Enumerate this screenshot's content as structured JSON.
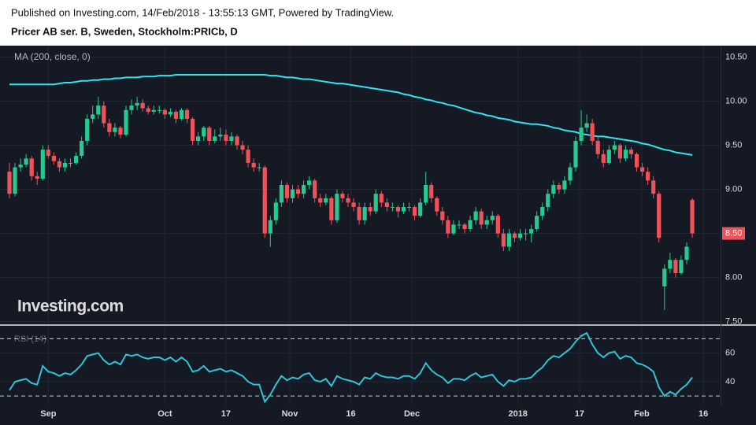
{
  "header": {
    "published": "Published on Investing.com, 14/Feb/2018 - 13:55:13 GMT, Powered by TradingView."
  },
  "chart_data": [
    {
      "type": "candlestick",
      "title": "Pricer AB ser. B, Sweden, Stockholm:PRICb, D",
      "watermark": "Investing.com",
      "up_color": "#26c98f",
      "down_color": "#f0525a",
      "ohlc": [
        [
          9.2,
          9.3,
          8.9,
          8.95
        ],
        [
          8.95,
          9.3,
          8.92,
          9.25
        ],
        [
          9.25,
          9.35,
          9.2,
          9.28
        ],
        [
          9.28,
          9.4,
          9.25,
          9.35
        ],
        [
          9.35,
          9.38,
          9.1,
          9.15
        ],
        [
          9.15,
          9.2,
          9.05,
          9.12
        ],
        [
          9.12,
          9.5,
          9.1,
          9.45
        ],
        [
          9.45,
          9.5,
          9.35,
          9.38
        ],
        [
          9.38,
          9.42,
          9.28,
          9.32
        ],
        [
          9.32,
          9.35,
          9.2,
          9.25
        ],
        [
          9.25,
          9.35,
          9.2,
          9.3
        ],
        [
          9.3,
          9.35,
          9.25,
          9.3
        ],
        [
          9.3,
          9.42,
          9.28,
          9.38
        ],
        [
          9.38,
          9.6,
          9.35,
          9.55
        ],
        [
          9.55,
          9.85,
          9.5,
          9.8
        ],
        [
          9.8,
          9.95,
          9.75,
          9.85
        ],
        [
          9.85,
          10.05,
          9.8,
          9.95
        ],
        [
          9.95,
          10.0,
          9.7,
          9.75
        ],
        [
          9.75,
          9.8,
          9.6,
          9.65
        ],
        [
          9.65,
          9.75,
          9.6,
          9.7
        ],
        [
          9.7,
          9.72,
          9.58,
          9.62
        ],
        [
          9.62,
          9.95,
          9.6,
          9.9
        ],
        [
          9.9,
          10.02,
          9.85,
          9.95
        ],
        [
          9.95,
          10.05,
          9.9,
          9.98
        ],
        [
          9.98,
          10.02,
          9.88,
          9.92
        ],
        [
          9.92,
          9.95,
          9.85,
          9.88
        ],
        [
          9.88,
          9.95,
          9.85,
          9.9
        ],
        [
          9.9,
          9.95,
          9.86,
          9.9
        ],
        [
          9.9,
          9.92,
          9.8,
          9.85
        ],
        [
          9.85,
          9.92,
          9.82,
          9.88
        ],
        [
          9.88,
          9.9,
          9.75,
          9.8
        ],
        [
          9.8,
          9.92,
          9.78,
          9.9
        ],
        [
          9.9,
          9.92,
          9.75,
          9.8
        ],
        [
          9.8,
          9.82,
          9.5,
          9.55
        ],
        [
          9.55,
          9.65,
          9.5,
          9.6
        ],
        [
          9.6,
          9.72,
          9.55,
          9.7
        ],
        [
          9.7,
          9.72,
          9.5,
          9.55
        ],
        [
          9.55,
          9.68,
          9.52,
          9.6
        ],
        [
          9.6,
          9.7,
          9.55,
          9.62
        ],
        [
          9.62,
          9.68,
          9.5,
          9.55
        ],
        [
          9.55,
          9.65,
          9.5,
          9.6
        ],
        [
          9.6,
          9.62,
          9.45,
          9.5
        ],
        [
          9.5,
          9.55,
          9.4,
          9.45
        ],
        [
          9.45,
          9.5,
          9.25,
          9.3
        ],
        [
          9.3,
          9.35,
          9.2,
          9.25
        ],
        [
          9.25,
          9.3,
          9.2,
          9.25
        ],
        [
          9.25,
          9.27,
          8.45,
          8.5
        ],
        [
          8.5,
          8.7,
          8.35,
          8.65
        ],
        [
          8.65,
          8.9,
          8.6,
          8.85
        ],
        [
          8.85,
          9.1,
          8.8,
          9.05
        ],
        [
          9.05,
          9.08,
          8.85,
          8.9
        ],
        [
          8.9,
          9.05,
          8.85,
          9.0
        ],
        [
          9.0,
          9.05,
          8.9,
          8.95
        ],
        [
          8.95,
          9.1,
          8.9,
          9.05
        ],
        [
          9.05,
          9.15,
          9.0,
          9.1
        ],
        [
          9.1,
          9.12,
          8.85,
          8.9
        ],
        [
          8.9,
          8.95,
          8.8,
          8.85
        ],
        [
          8.85,
          8.95,
          8.82,
          8.9
        ],
        [
          8.9,
          8.92,
          8.6,
          8.65
        ],
        [
          8.65,
          9.0,
          8.62,
          8.95
        ],
        [
          8.95,
          8.98,
          8.85,
          8.9
        ],
        [
          8.9,
          8.95,
          8.8,
          8.85
        ],
        [
          8.85,
          8.9,
          8.75,
          8.8
        ],
        [
          8.8,
          8.85,
          8.6,
          8.65
        ],
        [
          8.65,
          8.85,
          8.6,
          8.8
        ],
        [
          8.8,
          8.85,
          8.7,
          8.75
        ],
        [
          8.75,
          9.0,
          8.72,
          8.95
        ],
        [
          8.95,
          8.98,
          8.8,
          8.85
        ],
        [
          8.85,
          8.9,
          8.75,
          8.8
        ],
        [
          8.8,
          8.85,
          8.75,
          8.8
        ],
        [
          8.8,
          8.82,
          8.68,
          8.75
        ],
        [
          8.75,
          8.85,
          8.72,
          8.8
        ],
        [
          8.8,
          8.85,
          8.75,
          8.8
        ],
        [
          8.8,
          8.82,
          8.65,
          8.7
        ],
        [
          8.7,
          8.9,
          8.68,
          8.85
        ],
        [
          8.85,
          9.2,
          8.82,
          9.05
        ],
        [
          9.05,
          9.08,
          8.85,
          8.9
        ],
        [
          8.9,
          8.92,
          8.7,
          8.75
        ],
        [
          8.75,
          8.8,
          8.6,
          8.65
        ],
        [
          8.65,
          8.7,
          8.45,
          8.5
        ],
        [
          8.5,
          8.65,
          8.48,
          8.6
        ],
        [
          8.6,
          8.65,
          8.55,
          8.6
        ],
        [
          8.6,
          8.62,
          8.5,
          8.55
        ],
        [
          8.55,
          8.7,
          8.52,
          8.65
        ],
        [
          8.65,
          8.8,
          8.6,
          8.75
        ],
        [
          8.75,
          8.78,
          8.55,
          8.6
        ],
        [
          8.6,
          8.7,
          8.55,
          8.65
        ],
        [
          8.65,
          8.75,
          8.6,
          8.7
        ],
        [
          8.7,
          8.72,
          8.45,
          8.5
        ],
        [
          8.5,
          8.55,
          8.3,
          8.35
        ],
        [
          8.35,
          8.55,
          8.3,
          8.5
        ],
        [
          8.5,
          8.52,
          8.4,
          8.45
        ],
        [
          8.45,
          8.55,
          8.42,
          8.5
        ],
        [
          8.5,
          8.55,
          8.42,
          8.5
        ],
        [
          8.5,
          8.6,
          8.4,
          8.55
        ],
        [
          8.55,
          8.75,
          8.52,
          8.7
        ],
        [
          8.7,
          8.85,
          8.65,
          8.8
        ],
        [
          8.8,
          9.0,
          8.75,
          8.95
        ],
        [
          8.95,
          9.1,
          8.9,
          9.05
        ],
        [
          9.05,
          9.08,
          8.95,
          9.0
        ],
        [
          9.0,
          9.15,
          8.95,
          9.1
        ],
        [
          9.1,
          9.3,
          9.05,
          9.25
        ],
        [
          9.25,
          9.6,
          9.2,
          9.55
        ],
        [
          9.55,
          9.9,
          9.5,
          9.7
        ],
        [
          9.7,
          9.85,
          9.65,
          9.75
        ],
        [
          9.75,
          9.8,
          9.5,
          9.55
        ],
        [
          9.55,
          9.6,
          9.35,
          9.4
        ],
        [
          9.4,
          9.45,
          9.25,
          9.3
        ],
        [
          9.3,
          9.5,
          9.28,
          9.45
        ],
        [
          9.45,
          9.55,
          9.4,
          9.5
        ],
        [
          9.5,
          9.52,
          9.3,
          9.35
        ],
        [
          9.35,
          9.5,
          9.32,
          9.45
        ],
        [
          9.45,
          9.48,
          9.35,
          9.4
        ],
        [
          9.4,
          9.42,
          9.2,
          9.25
        ],
        [
          9.25,
          9.3,
          9.15,
          9.2
        ],
        [
          9.2,
          9.25,
          9.05,
          9.1
        ],
        [
          9.1,
          9.15,
          8.9,
          8.95
        ],
        [
          8.95,
          8.98,
          8.4,
          8.45
        ],
        [
          7.9,
          8.15,
          7.63,
          8.1
        ],
        [
          8.1,
          8.28,
          8.05,
          8.2
        ],
        [
          8.2,
          8.22,
          8.0,
          8.05
        ],
        [
          8.05,
          8.25,
          8.03,
          8.2
        ],
        [
          8.2,
          8.4,
          8.15,
          8.35
        ],
        [
          8.88,
          8.9,
          8.45,
          8.5
        ]
      ],
      "series": [
        {
          "name": "MA (200, close, 0)",
          "color": "#2ee6f0",
          "values": [
            10.19,
            10.19,
            10.19,
            10.19,
            10.19,
            10.19,
            10.19,
            10.19,
            10.19,
            10.2,
            10.21,
            10.21,
            10.22,
            10.23,
            10.23,
            10.24,
            10.24,
            10.25,
            10.25,
            10.26,
            10.26,
            10.27,
            10.27,
            10.27,
            10.28,
            10.28,
            10.28,
            10.29,
            10.29,
            10.29,
            10.3,
            10.3,
            10.3,
            10.3,
            10.3,
            10.3,
            10.3,
            10.3,
            10.3,
            10.3,
            10.3,
            10.3,
            10.3,
            10.3,
            10.3,
            10.3,
            10.3,
            10.29,
            10.29,
            10.28,
            10.27,
            10.27,
            10.26,
            10.25,
            10.25,
            10.24,
            10.23,
            10.22,
            10.21,
            10.2,
            10.2,
            10.19,
            10.18,
            10.17,
            10.16,
            10.15,
            10.14,
            10.13,
            10.12,
            10.11,
            10.1,
            10.08,
            10.07,
            10.05,
            10.04,
            10.02,
            10.01,
            9.99,
            9.98,
            9.96,
            9.95,
            9.93,
            9.91,
            9.89,
            9.87,
            9.86,
            9.84,
            9.83,
            9.81,
            9.8,
            9.79,
            9.77,
            9.76,
            9.75,
            9.74,
            9.74,
            9.73,
            9.72,
            9.7,
            9.69,
            9.67,
            9.66,
            9.65,
            9.63,
            9.62,
            9.61,
            9.6,
            9.6,
            9.59,
            9.58,
            9.57,
            9.56,
            9.55,
            9.54,
            9.52,
            9.51,
            9.49,
            9.47,
            9.45,
            9.44,
            9.42,
            9.41,
            9.4,
            9.39
          ]
        }
      ],
      "last_value_label": "8.50",
      "xlim": [
        -1.7,
        128.1
      ],
      "ylim": [
        7.47,
        10.63
      ],
      "yticks": [
        {
          "value": 7.5,
          "label": "7.50"
        },
        {
          "value": 8,
          "label": "8.00"
        },
        {
          "value": 8.5,
          "label": "8.50"
        },
        {
          "value": 9,
          "label": "9.00"
        },
        {
          "value": 9.5,
          "label": "9.50"
        },
        {
          "value": 10,
          "label": "10.00"
        },
        {
          "value": 10.5,
          "label": "10.50"
        }
      ],
      "grid": true
    },
    {
      "type": "line",
      "title": "RSI (14)",
      "series": [
        {
          "name": "RSI",
          "color": "#2ec4d6",
          "values": [
            34,
            40,
            41,
            42,
            39,
            38,
            51,
            47,
            46,
            44,
            46,
            45,
            48,
            52,
            58,
            59,
            60,
            55,
            52,
            54,
            52,
            59,
            58,
            59,
            57,
            56,
            57,
            57,
            55,
            57,
            54,
            57,
            54,
            47,
            48,
            51,
            47,
            48,
            49,
            47,
            48,
            46,
            44,
            40,
            38,
            38,
            26,
            31,
            38,
            44,
            41,
            43,
            42,
            45,
            46,
            41,
            40,
            42,
            37,
            44,
            42,
            41,
            40,
            38,
            43,
            42,
            46,
            44,
            43,
            43,
            42,
            44,
            44,
            42,
            46,
            53,
            48,
            45,
            43,
            39,
            42,
            42,
            41,
            44,
            46,
            43,
            44,
            45,
            40,
            37,
            41,
            40,
            42,
            42,
            43,
            47,
            50,
            55,
            58,
            57,
            60,
            63,
            68,
            72,
            74,
            66,
            60,
            57,
            60,
            61,
            56,
            58,
            57,
            53,
            52,
            50,
            47,
            36,
            30,
            33,
            31,
            35,
            38,
            43
          ]
        }
      ],
      "levels": [
        30,
        70
      ],
      "xlim": [
        -1.7,
        128.1
      ],
      "ylim": [
        23.5,
        79
      ],
      "yticks": [
        40,
        60
      ],
      "xticks": [
        {
          "value": 7,
          "label": "Sep"
        },
        {
          "value": 28,
          "label": "Oct"
        },
        {
          "value": 39,
          "label": "17"
        },
        {
          "value": 50.5,
          "label": "Nov"
        },
        {
          "value": 61.5,
          "label": "16"
        },
        {
          "value": 72.5,
          "label": "Dec"
        },
        {
          "value": 91.6,
          "label": "2018"
        },
        {
          "value": 102.7,
          "label": "17"
        },
        {
          "value": 113.9,
          "label": "Feb"
        },
        {
          "value": 125,
          "label": "16"
        }
      ],
      "grid": true
    }
  ]
}
